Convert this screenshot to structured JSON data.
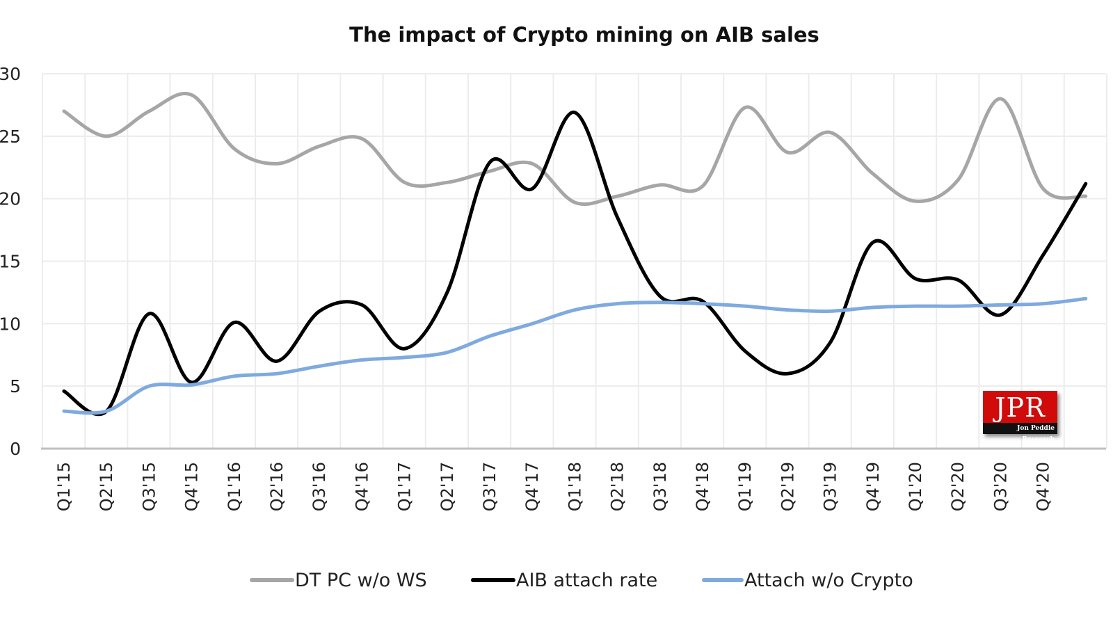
{
  "chart_data": {
    "type": "line",
    "title": "The impact of Crypto mining on AIB sales",
    "xlabel": "",
    "ylabel": "",
    "ylim": [
      0,
      30
    ],
    "yticks": [
      0,
      5,
      10,
      15,
      20,
      25,
      30
    ],
    "ytick_labels": [
      "0",
      "5",
      "10",
      "15",
      "20",
      "25",
      "30"
    ],
    "grid": true,
    "smooth": true,
    "legend_position": "bottom",
    "categories": [
      "Q1'15",
      "Q2'15",
      "Q3'15",
      "Q4'15",
      "Q1'16",
      "Q2'16",
      "Q3'16",
      "Q4'16",
      "Q1'17",
      "Q2'17",
      "Q3'17",
      "Q4'17",
      "Q1'18",
      "Q2'18",
      "Q3'18",
      "Q4'18",
      "Q1'19",
      "Q2'19",
      "Q3'19",
      "Q4'19",
      "Q1'20",
      "Q2'20",
      "Q3'20",
      "Q4'20",
      ""
    ],
    "series": [
      {
        "name": "DT PC w/o WS",
        "color": "#a6a6a6",
        "values": [
          27.0,
          25.0,
          27.0,
          28.3,
          24.0,
          22.8,
          24.2,
          24.8,
          21.3,
          21.3,
          22.2,
          22.8,
          19.7,
          20.2,
          21.1,
          21.0,
          27.3,
          23.7,
          25.3,
          22.0,
          19.8,
          21.5,
          28.0,
          20.8,
          20.2
        ]
      },
      {
        "name": "AIB attach rate",
        "color": "#000000",
        "values": [
          4.6,
          3.0,
          10.8,
          5.3,
          10.1,
          7.0,
          11.0,
          11.5,
          8.0,
          12.5,
          22.9,
          20.8,
          26.9,
          18.5,
          12.2,
          11.8,
          7.8,
          6.0,
          8.5,
          16.5,
          13.6,
          13.5,
          10.7,
          15.5,
          21.2
        ]
      },
      {
        "name": "Attach w/o Crypto",
        "color": "#7faadf",
        "values": [
          3.0,
          3.0,
          5.0,
          5.1,
          5.8,
          6.0,
          6.6,
          7.1,
          7.3,
          7.7,
          9.0,
          10.0,
          11.1,
          11.6,
          11.7,
          11.6,
          11.4,
          11.1,
          11.0,
          11.3,
          11.4,
          11.4,
          11.5,
          11.6,
          12.0
        ]
      }
    ]
  },
  "watermark": {
    "logo_text": "JPR",
    "subtitle": "Jon Peddie Research",
    "background": "#d10a0a"
  }
}
